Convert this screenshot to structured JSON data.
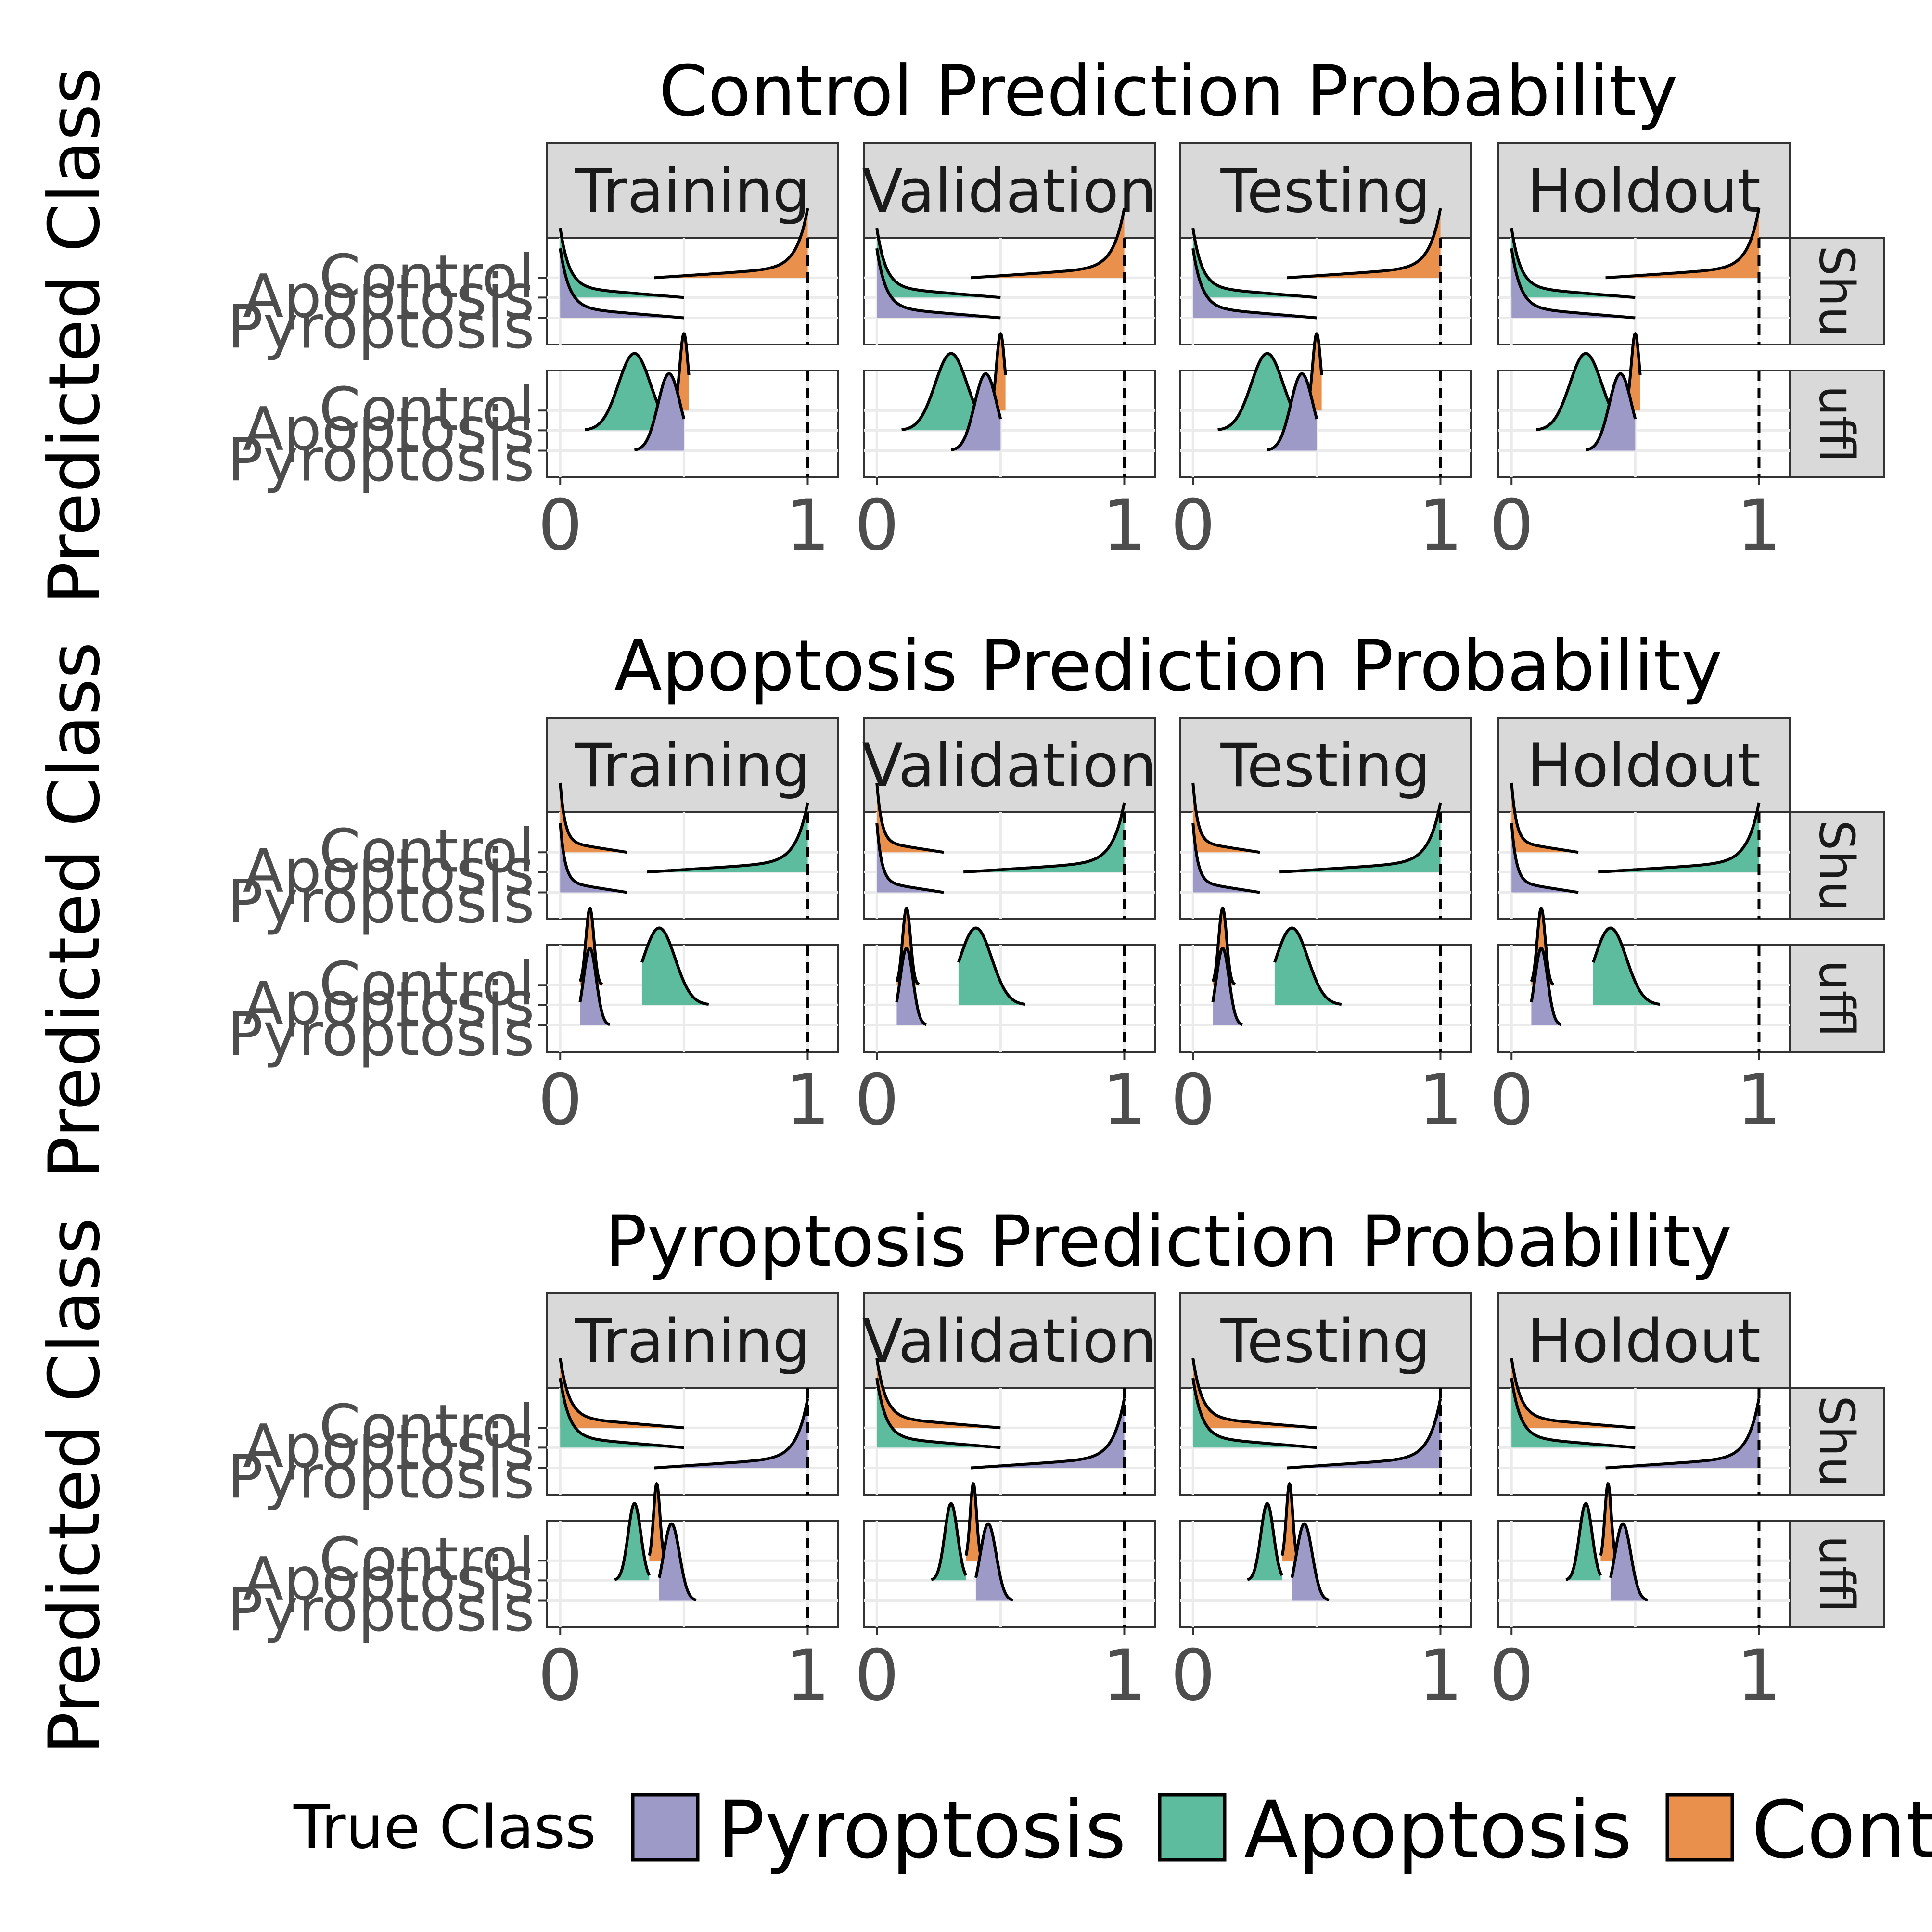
{
  "legend": {
    "title": "True Class",
    "entries": [
      {
        "label": "Pyroptosis",
        "color": "#9e9ac8"
      },
      {
        "label": "Apoptosis",
        "color": "#5dbb9e"
      },
      {
        "label": "Control",
        "color": "#e8904c"
      }
    ]
  },
  "chart_data": {
    "type": "ridgeline density (faceted)",
    "y_axis_label": "Predicted Class",
    "x_axis": {
      "ticks": [
        0,
        1
      ],
      "range": [
        0,
        1
      ],
      "reference_line": 1
    },
    "facet_columns": [
      "Training",
      "Validation",
      "Testing",
      "Holdout"
    ],
    "facet_rows": [
      "Shu",
      "uffl"
    ],
    "y_categories": [
      "Control",
      "Apoptosis",
      "Pyroptosis"
    ],
    "grid": true,
    "legend_position": "bottom",
    "panels": [
      {
        "title": "Control Prediction Probability",
        "note": "density curves per true class (approx. visual read)",
        "rows": {
          "Shu": {
            "Control": {
              "x_from": 0.38,
              "x_to": 1.0,
              "peak_at": 1.0
            },
            "Apoptosis": {
              "x_from": 0.0,
              "x_to": 0.5,
              "peak_at": 0.0
            },
            "Pyroptosis": {
              "x_from": 0.0,
              "x_to": 0.5,
              "peak_at": 0.0
            }
          },
          "uffl": {
            "Control": {
              "x_from": 0.45,
              "x_to": 0.52,
              "peak_at": 0.5
            },
            "Apoptosis": {
              "x_from": 0.1,
              "x_to": 0.45,
              "peak_at": 0.3
            },
            "Pyroptosis": {
              "x_from": 0.3,
              "x_to": 0.5,
              "peak_at": 0.44
            }
          }
        }
      },
      {
        "title": "Apoptosis Prediction Probability",
        "rows": {
          "Shu": {
            "Control": {
              "x_from": 0.0,
              "x_to": 0.27,
              "peak_at": 0.0
            },
            "Apoptosis": {
              "x_from": 0.35,
              "x_to": 1.0,
              "peak_at": 1.0
            },
            "Pyroptosis": {
              "x_from": 0.0,
              "x_to": 0.27,
              "peak_at": 0.0
            }
          },
          "uffl": {
            "Control": {
              "x_from": 0.08,
              "x_to": 0.17,
              "peak_at": 0.12
            },
            "Apoptosis": {
              "x_from": 0.33,
              "x_to": 0.6,
              "peak_at": 0.4
            },
            "Pyroptosis": {
              "x_from": 0.08,
              "x_to": 0.2,
              "peak_at": 0.12
            }
          }
        }
      },
      {
        "title": "Pyroptosis Prediction Probability",
        "rows": {
          "Shu": {
            "Control": {
              "x_from": 0.0,
              "x_to": 0.5,
              "peak_at": 0.0
            },
            "Apoptosis": {
              "x_from": 0.0,
              "x_to": 0.5,
              "peak_at": 0.0
            },
            "Pyroptosis": {
              "x_from": 0.38,
              "x_to": 1.0,
              "peak_at": 1.0
            }
          },
          "uffl": {
            "Control": {
              "x_from": 0.36,
              "x_to": 0.43,
              "peak_at": 0.39
            },
            "Apoptosis": {
              "x_from": 0.22,
              "x_to": 0.36,
              "peak_at": 0.3
            },
            "Pyroptosis": {
              "x_from": 0.4,
              "x_to": 0.55,
              "peak_at": 0.45
            }
          }
        }
      }
    ]
  }
}
